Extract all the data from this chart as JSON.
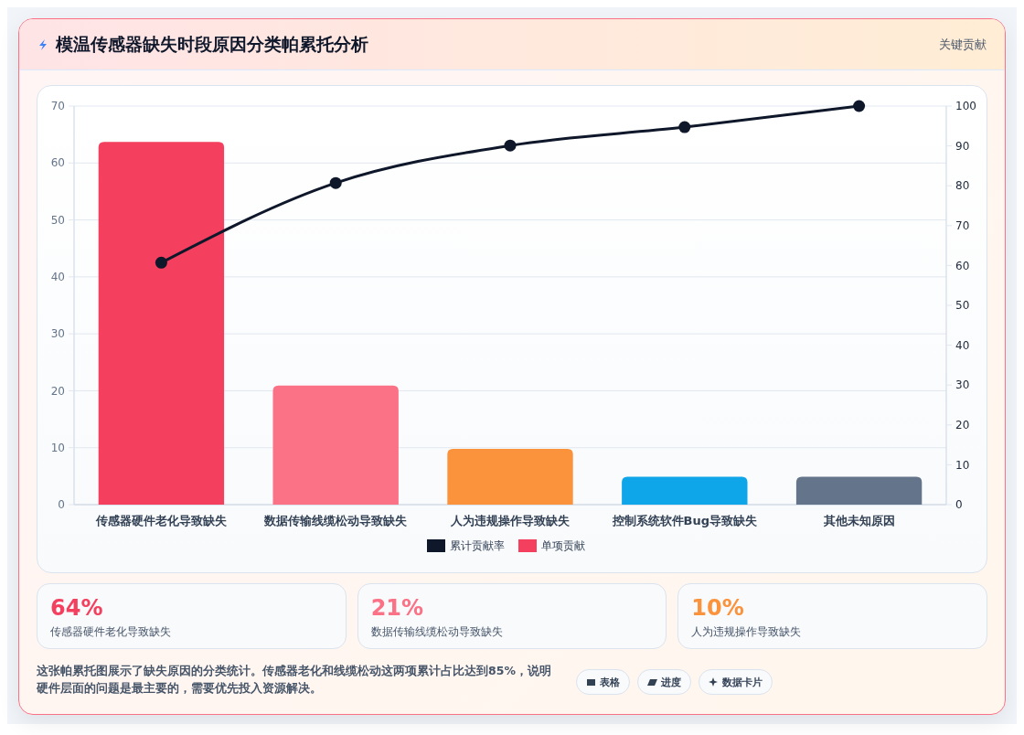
{
  "chart_data": [
    {
      "type": "bar",
      "title": "模温传感器缺失时段原因分类帕累托分析",
      "subtitle": "关键贡献",
      "categories": [
        "传感器硬件老化导致缺失",
        "数据传输线缆松动导致缺失",
        "人为违规操作导致缺失",
        "控制系统软件Bug导致缺失",
        "其他未知原因"
      ],
      "series": [
        {
          "name": "累计贡献率",
          "type": "line",
          "axis": "y2",
          "color": "#0f172a",
          "values": [
            60.7,
            80.7,
            90.1,
            94.7,
            100
          ]
        },
        {
          "name": "单项贡献",
          "type": "bar",
          "colors": [
            "#f43f5e",
            "#fb7185",
            "#fb923c",
            "#0ea5e9",
            "#64748b"
          ],
          "values": [
            63.7,
            20.9,
            9.8,
            4.9,
            4.9
          ]
        }
      ],
      "ylim": [
        0,
        70
      ],
      "yticks": [
        0,
        10,
        20,
        30,
        40,
        50,
        60,
        70
      ],
      "y2lim": [
        0,
        100
      ],
      "y2ticks": [
        0,
        10,
        20,
        30,
        40,
        50,
        60,
        70,
        80,
        90,
        100
      ],
      "grid": "y",
      "legend": "bottom",
      "marker": "circle",
      "line_style": "solid",
      "annotations": [
        "这张帕累托图展示了缺失原因的分类统计。传感器老化和线缆松动这两项累计占比达到85%，说明硬件层面的问题是最主要的，需要优先投入资源解决。",
        "表格",
        "进度",
        "数据卡片"
      ]
    },
    {
      "type": "other",
      "annotations": [
        "64%",
        "传感器硬件老化导致缺失",
        "21%",
        "数据传输线缆松动导致缺失",
        "10%",
        "人为违规操作导致缺失"
      ]
    }
  ]
}
